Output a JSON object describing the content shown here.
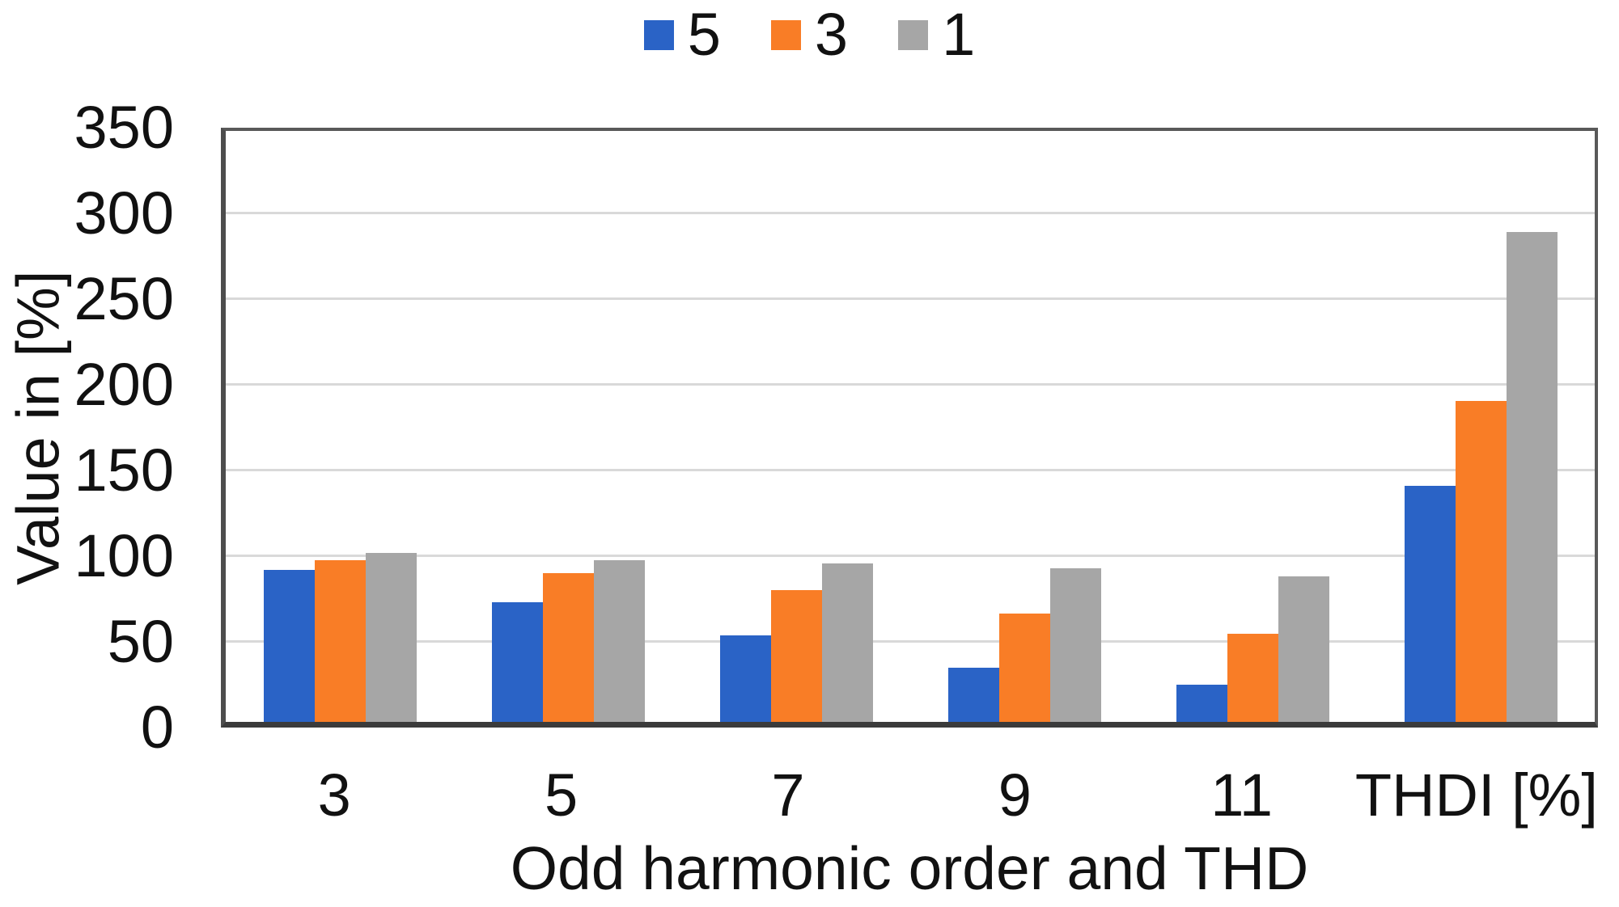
{
  "figure": {
    "background": "#ffffff",
    "text_color": "#111111",
    "grid_color": "#d9d9d9",
    "border_color": "#595959"
  },
  "chart_data": {
    "type": "bar",
    "title": "",
    "categories": [
      "3",
      "5",
      "7",
      "9",
      "11",
      "THDI [%]"
    ],
    "series": [
      {
        "name": "5",
        "color": "#2a63c6",
        "values": [
          90,
          71,
          51,
          32,
          22,
          140
        ]
      },
      {
        "name": "3",
        "color": "#f97d26",
        "values": [
          96,
          88,
          78,
          64,
          52,
          190
        ]
      },
      {
        "name": "1",
        "color": "#a6a6a6",
        "values": [
          100,
          96,
          94,
          91,
          86,
          290
        ]
      }
    ],
    "xlabel": "Odd harmonic order and THD",
    "ylabel": "Value in [%]",
    "ylim": [
      0,
      350
    ],
    "ytick_step": 50,
    "yticks": [
      "350",
      "300",
      "250",
      "200",
      "150",
      "100",
      "50",
      "0"
    ],
    "grid": true,
    "legend_position": "top"
  }
}
